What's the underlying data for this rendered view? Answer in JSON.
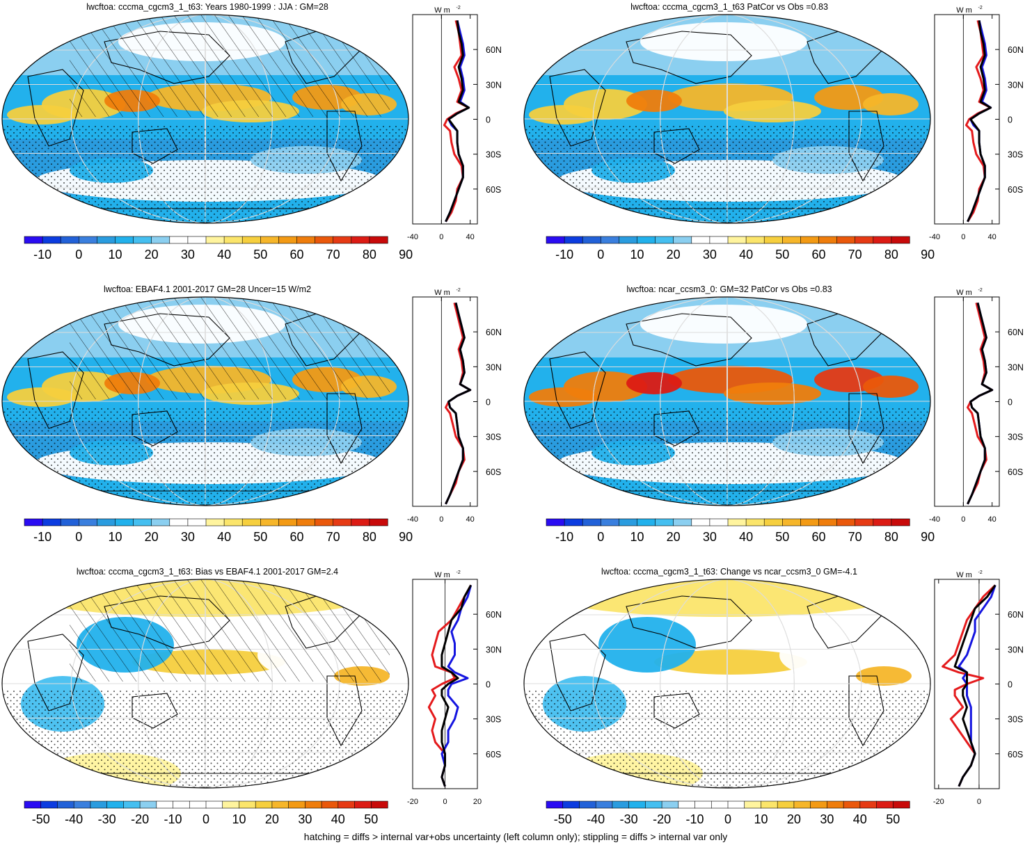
{
  "footer": "hatching = diffs > internal var+obs uncertainty (left column only); stippling = diffs > internal var only",
  "colors": {
    "abs": [
      "#2a0cf2",
      "#0c3ce0",
      "#2261d8",
      "#3a7fde",
      "#2a9cdf",
      "#22b1ec",
      "#45bff0",
      "#8bcff0",
      "#ffffff",
      "#ffffff",
      "#fff49e",
      "#fbe56b",
      "#f6cf3e",
      "#f6b62a",
      "#f39a14",
      "#ef7d0c",
      "#ea580b",
      "#e63a14",
      "#dc1b14",
      "#c80a0a"
    ],
    "diff": [
      "#2a0cf2",
      "#0c3ce0",
      "#2261d8",
      "#3a7fde",
      "#2a9cdf",
      "#22b1ec",
      "#45bff0",
      "#8bcff0",
      "#ffffff",
      "#ffffff",
      "#ffffff",
      "#ffffff",
      "#fff49e",
      "#fbe56b",
      "#f6cf3e",
      "#f6b62a",
      "#f39a14",
      "#ef7d0c",
      "#ea580b",
      "#e63a14",
      "#dc1b14",
      "#c80a0a"
    ],
    "zonal_model": "#e41a1c",
    "zonal_obs": "#1414e0",
    "zonal_ref": "#000000"
  },
  "chart_data": [
    {
      "type": "heatmap",
      "title": "lwcftoa: cccma_cgcm3_1_t63: Years 1980-1999 : JJA : GM=28",
      "colorbar": {
        "labels": [
          "-10",
          "0",
          "10",
          "20",
          "30",
          "40",
          "50",
          "60",
          "70",
          "80",
          "90"
        ]
      },
      "overlays": [
        "hatching",
        "stippling"
      ],
      "zonal": {
        "type": "line",
        "units_label": "W m",
        "units_exp": "-2",
        "xlim": [
          -40,
          50
        ],
        "xticks": [
          "-40",
          "0",
          "40"
        ],
        "ylim": [
          -90,
          90
        ],
        "yticks": [
          "60N",
          "30N",
          "0",
          "30S",
          "60S"
        ],
        "lat": [
          85,
          75,
          65,
          55,
          45,
          35,
          25,
          15,
          10,
          5,
          0,
          -5,
          -10,
          -20,
          -30,
          -40,
          -50,
          -60,
          -70,
          -80,
          -88
        ],
        "series": [
          {
            "name": "model",
            "color": "zonal_model",
            "values": [
              20,
              24,
              26,
              28,
              18,
              24,
              28,
              22,
              38,
              20,
              8,
              4,
              12,
              14,
              18,
              28,
              30,
              22,
              20,
              14,
              6
            ]
          },
          {
            "name": "obs",
            "color": "zonal_obs",
            "values": [
              22,
              26,
              30,
              32,
              26,
              30,
              32,
              26,
              38,
              22,
              10,
              14,
              22,
              22,
              24,
              30,
              30,
              24,
              18,
              12,
              6
            ]
          },
          {
            "name": "reference",
            "color": "zonal_ref",
            "values": [
              22,
              24,
              28,
              30,
              24,
              28,
              30,
              24,
              38,
              22,
              10,
              16,
              22,
              22,
              24,
              30,
              30,
              24,
              18,
              12,
              6
            ]
          }
        ]
      }
    },
    {
      "type": "heatmap",
      "title": "lwcftoa: cccma_cgcm3_1_t63 PatCor vs Obs =0.83",
      "colorbar": {
        "labels": [
          "-10",
          "0",
          "10",
          "20",
          "30",
          "40",
          "50",
          "60",
          "70",
          "80",
          "90"
        ]
      },
      "overlays": [
        "stippling"
      ],
      "zonal": {
        "type": "line",
        "units_label": "W m",
        "units_exp": "-2",
        "xlim": [
          -40,
          50
        ],
        "xticks": [
          "-40",
          "0",
          "40"
        ],
        "ylim": [
          -90,
          90
        ],
        "yticks": [
          "60N",
          "30N",
          "0",
          "30S",
          "60S"
        ],
        "lat": [
          85,
          75,
          65,
          55,
          45,
          35,
          25,
          15,
          10,
          5,
          0,
          -5,
          -10,
          -20,
          -30,
          -40,
          -50,
          -60,
          -70,
          -80,
          -88
        ],
        "series": [
          {
            "name": "model",
            "color": "zonal_model",
            "values": [
              20,
              24,
              26,
              28,
              18,
              24,
              28,
              22,
              38,
              20,
              8,
              4,
              12,
              14,
              18,
              28,
              30,
              22,
              20,
              14,
              6
            ]
          },
          {
            "name": "obs",
            "color": "zonal_obs",
            "values": [
              22,
              26,
              30,
              32,
              26,
              30,
              32,
              26,
              38,
              22,
              10,
              14,
              22,
              22,
              24,
              30,
              30,
              24,
              18,
              12,
              6
            ]
          },
          {
            "name": "reference",
            "color": "zonal_ref",
            "values": [
              22,
              24,
              28,
              30,
              24,
              28,
              30,
              24,
              38,
              22,
              10,
              16,
              22,
              22,
              24,
              30,
              30,
              24,
              18,
              12,
              6
            ]
          }
        ]
      }
    },
    {
      "type": "heatmap",
      "title": "lwcftoa: EBAF4.1 2001-2017 GM=28 Uncer=15 W/m2",
      "colorbar": {
        "labels": [
          "-10",
          "0",
          "10",
          "20",
          "30",
          "40",
          "50",
          "60",
          "70",
          "80",
          "90"
        ]
      },
      "overlays": [
        "hatching",
        "stippling"
      ],
      "zonal": {
        "type": "line",
        "units_label": "W m",
        "units_exp": "-2",
        "xlim": [
          -40,
          50
        ],
        "xticks": [
          "-40",
          "0",
          "40"
        ],
        "ylim": [
          -90,
          90
        ],
        "yticks": [
          "60N",
          "30N",
          "0",
          "30S",
          "60S"
        ],
        "lat": [
          85,
          75,
          65,
          55,
          45,
          35,
          25,
          15,
          10,
          5,
          0,
          -5,
          -10,
          -20,
          -30,
          -40,
          -50,
          -60,
          -70,
          -80,
          -88
        ],
        "series": [
          {
            "name": "model",
            "color": "zonal_model",
            "values": [
              18,
              22,
              26,
              30,
              24,
              28,
              30,
              26,
              40,
              22,
              10,
              6,
              12,
              16,
              20,
              30,
              32,
              24,
              20,
              12,
              6
            ]
          },
          {
            "name": "obs",
            "color": "zonal_obs",
            "values": [
              20,
              24,
              28,
              32,
              26,
              30,
              32,
              26,
              40,
              22,
              10,
              12,
              20,
              22,
              24,
              30,
              30,
              24,
              18,
              12,
              6
            ]
          },
          {
            "name": "reference",
            "color": "zonal_ref",
            "values": [
              20,
              24,
              28,
              32,
              26,
              30,
              32,
              26,
              40,
              22,
              10,
              12,
              20,
              22,
              24,
              30,
              30,
              24,
              18,
              12,
              6
            ]
          }
        ]
      }
    },
    {
      "type": "heatmap",
      "title": "lwcftoa: ncar_ccsm3_0: GM=32 PatCor vs Obs =0.83",
      "colorbar": {
        "labels": [
          "-10",
          "0",
          "10",
          "20",
          "30",
          "40",
          "50",
          "60",
          "70",
          "80",
          "90"
        ]
      },
      "overlays": [
        "stippling"
      ],
      "zonal": {
        "type": "line",
        "units_label": "W m",
        "units_exp": "-2",
        "xlim": [
          -40,
          50
        ],
        "xticks": [
          "-40",
          "0",
          "40"
        ],
        "ylim": [
          -90,
          90
        ],
        "yticks": [
          "60N",
          "30N",
          "0",
          "30S",
          "60S"
        ],
        "lat": [
          85,
          75,
          65,
          55,
          45,
          35,
          25,
          15,
          10,
          5,
          0,
          -5,
          -10,
          -20,
          -30,
          -40,
          -50,
          -60,
          -70,
          -80,
          -88
        ],
        "series": [
          {
            "name": "model",
            "color": "zonal_model",
            "values": [
              18,
              22,
              26,
              30,
              24,
              28,
              30,
              26,
              40,
              22,
              10,
              6,
              12,
              16,
              20,
              30,
              32,
              24,
              20,
              12,
              6
            ]
          },
          {
            "name": "obs",
            "color": "zonal_obs",
            "values": [
              20,
              24,
              28,
              32,
              26,
              30,
              32,
              26,
              40,
              22,
              10,
              12,
              20,
              22,
              24,
              30,
              30,
              24,
              18,
              12,
              6
            ]
          },
          {
            "name": "reference",
            "color": "zonal_ref",
            "values": [
              20,
              24,
              28,
              32,
              26,
              30,
              32,
              26,
              40,
              22,
              10,
              12,
              20,
              22,
              24,
              30,
              30,
              24,
              18,
              12,
              6
            ]
          }
        ]
      }
    },
    {
      "type": "heatmap",
      "title": "lwcftoa: cccma_cgcm3_1_t63: Bias vs EBAF4.1 2001-2017 GM=2.4",
      "colorbar": {
        "labels": [
          "-50",
          "-40",
          "-30",
          "-20",
          "-10",
          "0",
          "10",
          "20",
          "30",
          "40",
          "50"
        ]
      },
      "overlays": [
        "hatching",
        "stippling"
      ],
      "zonal": {
        "type": "line",
        "units_label": "W m",
        "units_exp": "-2",
        "xlim": [
          -20,
          20
        ],
        "xticks": [
          "-20",
          "0",
          "20"
        ],
        "ylim": [
          -90,
          90
        ],
        "yticks": [
          "60N",
          "30N",
          "0",
          "30S",
          "60S"
        ],
        "lat": [
          85,
          75,
          65,
          55,
          45,
          35,
          25,
          15,
          10,
          5,
          0,
          -5,
          -10,
          -20,
          -30,
          -40,
          -50,
          -60,
          -70,
          -80,
          -88
        ],
        "series": [
          {
            "name": "model",
            "color": "zonal_model",
            "values": [
              16,
              12,
              8,
              4,
              -4,
              -6,
              -8,
              -6,
              4,
              6,
              -2,
              -8,
              -6,
              -10,
              -6,
              -8,
              -6,
              0,
              0,
              -2,
              0
            ]
          },
          {
            "name": "obs",
            "color": "zonal_obs",
            "values": [
              16,
              14,
              10,
              8,
              4,
              6,
              6,
              2,
              6,
              14,
              4,
              2,
              2,
              8,
              6,
              2,
              2,
              -2,
              0,
              -2,
              0
            ]
          },
          {
            "name": "reference",
            "color": "zonal_ref",
            "values": [
              16,
              12,
              10,
              4,
              2,
              0,
              -2,
              -2,
              4,
              8,
              2,
              -2,
              -2,
              2,
              0,
              -2,
              -2,
              0,
              0,
              -2,
              0
            ]
          }
        ]
      }
    },
    {
      "type": "heatmap",
      "title": "lwcftoa: cccma_cgcm3_1_t63: Change vs ncar_ccsm3_0 GM=-4.1",
      "colorbar": {
        "labels": [
          "-50",
          "-40",
          "-30",
          "-20",
          "-10",
          "0",
          "10",
          "20",
          "30",
          "40",
          "50"
        ]
      },
      "overlays": [
        "stippling"
      ],
      "zonal": {
        "type": "line",
        "units_label": "W m",
        "units_exp": "-2",
        "xlim": [
          -22,
          10
        ],
        "xticks": [
          "-20",
          "0"
        ],
        "ylim": [
          -90,
          90
        ],
        "yticks": [
          "60N",
          "30N",
          "0",
          "30S",
          "60S"
        ],
        "lat": [
          85,
          75,
          65,
          55,
          45,
          35,
          25,
          15,
          10,
          5,
          0,
          -5,
          -10,
          -20,
          -30,
          -40,
          -50,
          -60,
          -70,
          -80,
          -88
        ],
        "series": [
          {
            "name": "model",
            "color": "zonal_model",
            "values": [
              8,
              2,
              -2,
              -6,
              -8,
              -10,
              -12,
              -18,
              -10,
              2,
              -6,
              -12,
              -12,
              -8,
              -14,
              -10,
              -6,
              -2,
              -4,
              -8,
              -10
            ]
          },
          {
            "name": "obs",
            "color": "zonal_obs",
            "values": [
              8,
              6,
              2,
              -2,
              -2,
              -4,
              -6,
              -10,
              -6,
              -8,
              -6,
              -6,
              -6,
              -4,
              -4,
              -4,
              -4,
              -2,
              -4,
              -8,
              -10
            ]
          },
          {
            "name": "reference",
            "color": "zonal_ref",
            "values": [
              8,
              4,
              -2,
              -4,
              -6,
              -8,
              -10,
              -12,
              -6,
              -6,
              -6,
              -8,
              -8,
              -6,
              -8,
              -6,
              -4,
              -2,
              -4,
              -8,
              -10
            ]
          }
        ]
      }
    }
  ]
}
